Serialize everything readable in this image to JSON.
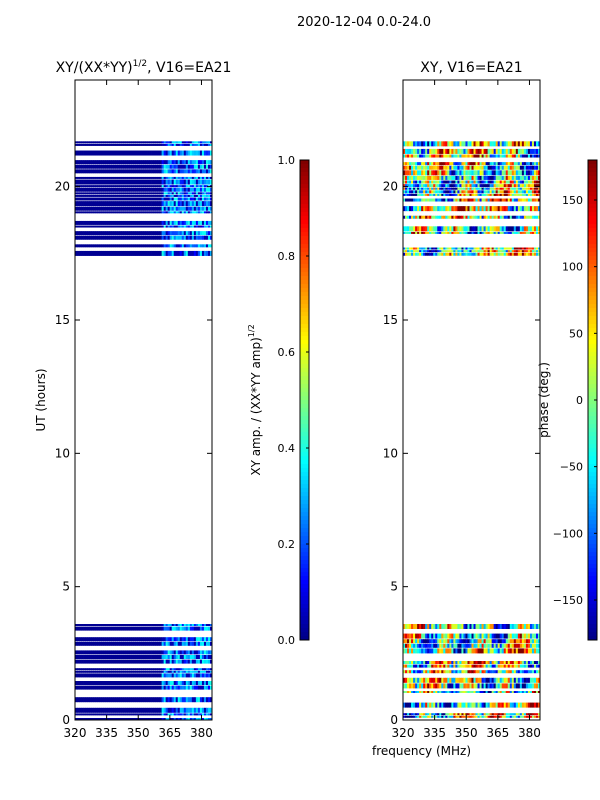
{
  "figure": {
    "suptitle": "2020-12-04 0.0-24.0"
  },
  "colors": {
    "jet": [
      "#00007f",
      "#0000ff",
      "#007fff",
      "#00ffff",
      "#7fff7f",
      "#ffff00",
      "#ff7f00",
      "#ff0000",
      "#7f0000"
    ],
    "frame": "#000000",
    "background": "#ffffff"
  },
  "chart_data": [
    {
      "type": "heatmap",
      "panel": "left",
      "title": "XY/(XX*YY)",
      "title_sup": "1/2",
      "title_tail": ", V16=EA21",
      "xlabel": "",
      "ylabel": "UT (hours)",
      "xlim": [
        320,
        385
      ],
      "ylim": [
        0,
        24
      ],
      "xticks": [
        320,
        335,
        350,
        365,
        380
      ],
      "yticks": [
        0,
        5,
        10,
        15,
        20
      ],
      "data_time_ranges_hours": [
        [
          0.0,
          3.6
        ],
        [
          17.4,
          21.7
        ]
      ],
      "typical_values": {
        "below_361_MHz": 0.02,
        "above_361_MHz": 0.18
      },
      "colorbar": {
        "label": "XY amp. / (XX*YY amp)",
        "label_sup": "1/2",
        "range": [
          0.0,
          1.0
        ],
        "ticks": [
          0.0,
          0.2,
          0.4,
          0.6,
          0.8,
          1.0
        ],
        "tick_labels": [
          "0.0",
          "0.2",
          "0.4",
          "0.6",
          "0.8",
          "1.0"
        ]
      }
    },
    {
      "type": "heatmap",
      "panel": "right",
      "title": "XY, V16=EA21",
      "xlabel": "frequency (MHz)",
      "ylabel": "",
      "xlim": [
        320,
        385
      ],
      "ylim": [
        0,
        24
      ],
      "xticks": [
        320,
        335,
        350,
        365,
        380
      ],
      "yticks": [
        0,
        5,
        10,
        15,
        20
      ],
      "data_time_ranges_hours": [
        [
          0.0,
          3.6
        ],
        [
          17.4,
          21.7
        ]
      ],
      "typical_values": {
        "phase_range_deg": [
          -180,
          180
        ]
      },
      "colorbar": {
        "label": "phase (deg.)",
        "range": [
          -180,
          180
        ],
        "ticks": [
          -150,
          -100,
          -50,
          0,
          50,
          100,
          150
        ],
        "tick_labels": [
          "−150",
          "−100",
          "−50",
          "0",
          "50",
          "100",
          "150"
        ]
      }
    }
  ]
}
